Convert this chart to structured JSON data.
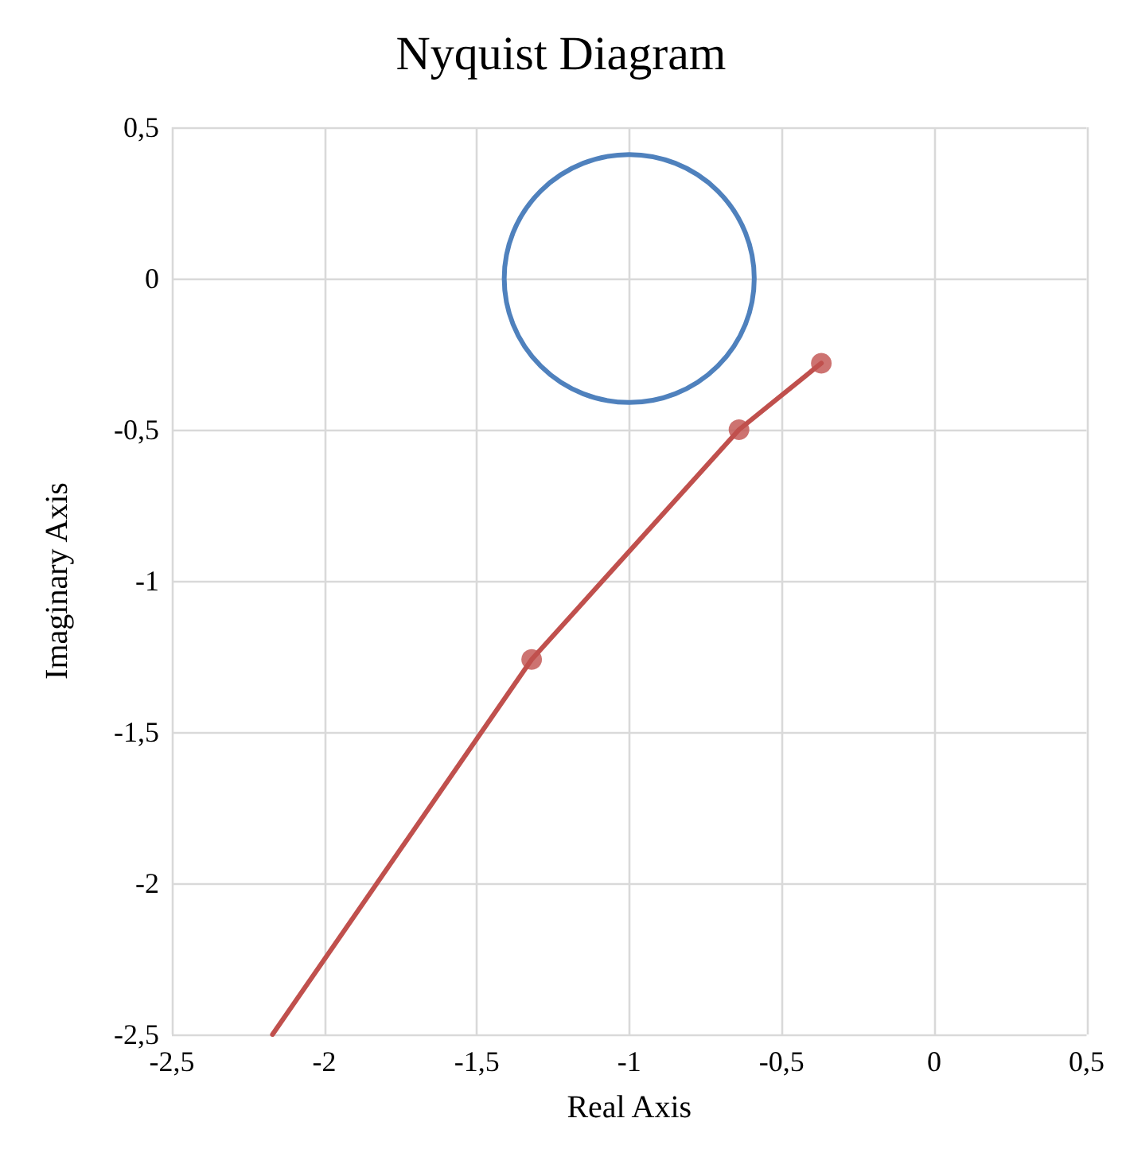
{
  "chart_data": {
    "type": "line",
    "title": "Nyquist Diagram",
    "xlabel": "Real Axis",
    "ylabel": "Imaginary Axis",
    "xlim": [
      -2.5,
      0.5
    ],
    "ylim": [
      -2.5,
      0.5
    ],
    "xticks": [
      {
        "value": -2.5,
        "label": "-2,5"
      },
      -2,
      {
        "value": -1.5,
        "label": "-1,5"
      },
      -1,
      {
        "value": -0.5,
        "label": "-0,5"
      },
      0,
      {
        "value": 0.5,
        "label": "0,5"
      }
    ],
    "yticks": [
      {
        "value": -2.5,
        "label": "-2,5"
      },
      -2,
      {
        "value": -1.5,
        "label": "-1,5"
      },
      -1,
      {
        "value": -0.5,
        "label": "-0,5"
      },
      0,
      {
        "value": 0.5,
        "label": "0,5"
      }
    ],
    "grid": true,
    "line_style": "solid",
    "series": [
      {
        "marker": "none",
        "color": "#c0504d",
        "x": [
          -0.37,
          -0.64,
          -1.32,
          -2.17
        ],
        "values": [
          -0.28,
          -0.5,
          -1.26,
          -2.5
        ]
      },
      {
        "type": "scatter",
        "marker": "circle",
        "color": "#c0504d",
        "x": [
          -0.37,
          -0.64,
          -1.32
        ],
        "values": [
          -0.28,
          -0.5,
          -1.26
        ]
      }
    ]
  }
}
